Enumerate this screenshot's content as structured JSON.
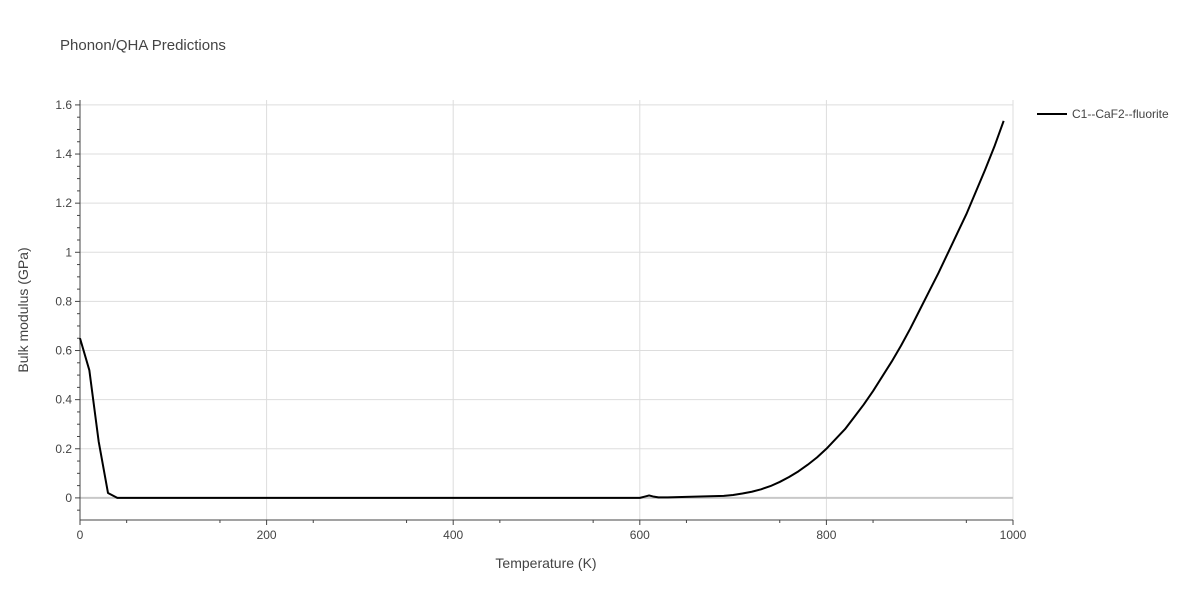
{
  "page": {
    "title": "Phonon/QHA Predictions"
  },
  "chart_data": {
    "type": "line",
    "title": "Phonon/QHA Predictions",
    "xlabel": "Temperature (K)",
    "ylabel": "Bulk modulus (GPa)",
    "xlim": [
      0,
      1000
    ],
    "ylim": [
      -0.09,
      1.62
    ],
    "x_ticks": [
      0,
      200,
      400,
      600,
      800,
      1000
    ],
    "x_tick_labels": [
      "0",
      "200",
      "400",
      "600",
      "800",
      "1000"
    ],
    "y_ticks": [
      0,
      0.2,
      0.4,
      0.6,
      0.8,
      1,
      1.2,
      1.4,
      1.6
    ],
    "y_tick_labels": [
      "0",
      "0.2",
      "0.4",
      "0.6",
      "0.8",
      "1",
      "1.2",
      "1.4",
      "1.6"
    ],
    "grid": true,
    "legend_position": "top-right outside",
    "series": [
      {
        "name": "C1--CaF2--fluorite",
        "color": "#000000",
        "x": [
          0,
          10,
          20,
          30,
          40,
          50,
          100,
          200,
          300,
          400,
          500,
          600,
          605,
          610,
          615,
          620,
          630,
          650,
          670,
          690,
          700,
          710,
          720,
          730,
          740,
          750,
          760,
          770,
          780,
          790,
          800,
          810,
          820,
          830,
          840,
          850,
          860,
          870,
          880,
          890,
          900,
          910,
          920,
          930,
          940,
          950,
          960,
          970,
          980,
          990
        ],
        "y": [
          0.65,
          0.52,
          0.23,
          0.02,
          0.0,
          0.0,
          0.0,
          0.0,
          0.0,
          0.0,
          0.0,
          0.0,
          0.005,
          0.01,
          0.005,
          0.002,
          0.002,
          0.004,
          0.006,
          0.008,
          0.012,
          0.018,
          0.025,
          0.035,
          0.048,
          0.065,
          0.085,
          0.108,
          0.135,
          0.165,
          0.2,
          0.24,
          0.28,
          0.33,
          0.38,
          0.435,
          0.495,
          0.555,
          0.62,
          0.69,
          0.765,
          0.84,
          0.915,
          0.995,
          1.075,
          1.155,
          1.245,
          1.335,
          1.43,
          1.535
        ]
      }
    ]
  }
}
